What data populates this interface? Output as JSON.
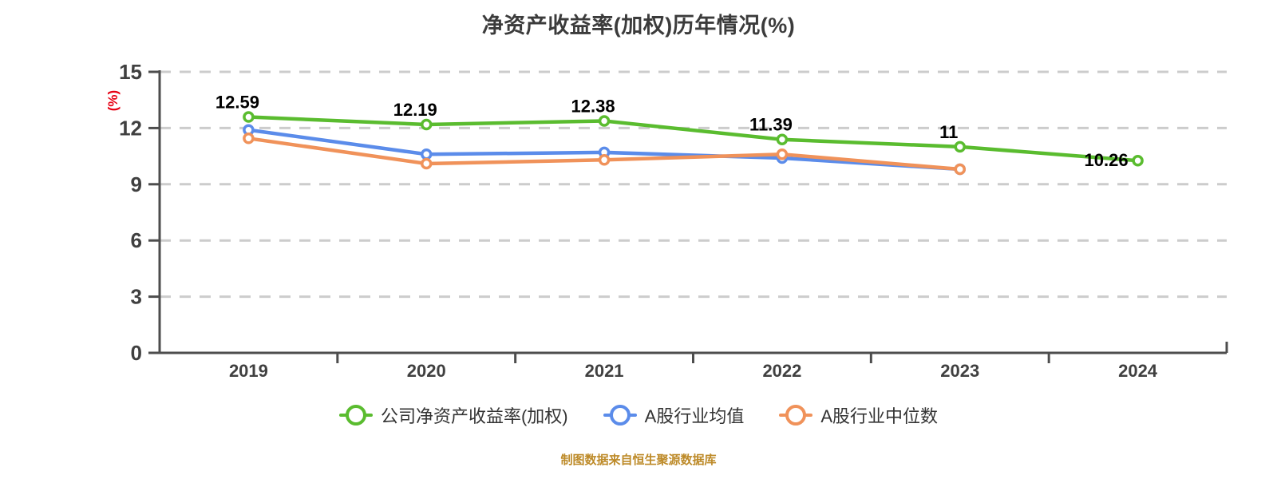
{
  "chart_data": {
    "type": "line",
    "title": "净资产收益率(加权)历年情况(%)",
    "ylabel": "(%)",
    "xlabel": "",
    "categories": [
      "2019",
      "2020",
      "2021",
      "2022",
      "2023",
      "2024"
    ],
    "y_ticks": [
      0,
      3,
      6,
      9,
      12,
      15
    ],
    "ylim": [
      0,
      15
    ],
    "grid": "horizontal-dashed",
    "legend_position": "bottom",
    "series": [
      {
        "name": "公司净资产收益率(加权)",
        "color": "#5abc2f",
        "values": [
          12.59,
          12.19,
          12.38,
          11.39,
          11,
          10.26
        ],
        "point_labels": [
          "12.59",
          "12.19",
          "12.38",
          "11.39",
          "11",
          "10.26"
        ]
      },
      {
        "name": "A股行业均值",
        "color": "#5b8cea",
        "values": [
          11.9,
          10.6,
          10.7,
          10.4,
          9.8,
          null
        ],
        "point_labels": null
      },
      {
        "name": "A股行业中位数",
        "color": "#f0925a",
        "values": [
          11.45,
          10.1,
          10.3,
          10.6,
          9.8,
          null
        ],
        "point_labels": null
      }
    ],
    "footer": "制图数据来自恒生聚源数据库"
  },
  "colors": {
    "grid": "#cccccc",
    "axis": "#4d4d4d",
    "tick_label": "#404040",
    "data_label": "#000000",
    "ylabel_red": "#e60012"
  }
}
